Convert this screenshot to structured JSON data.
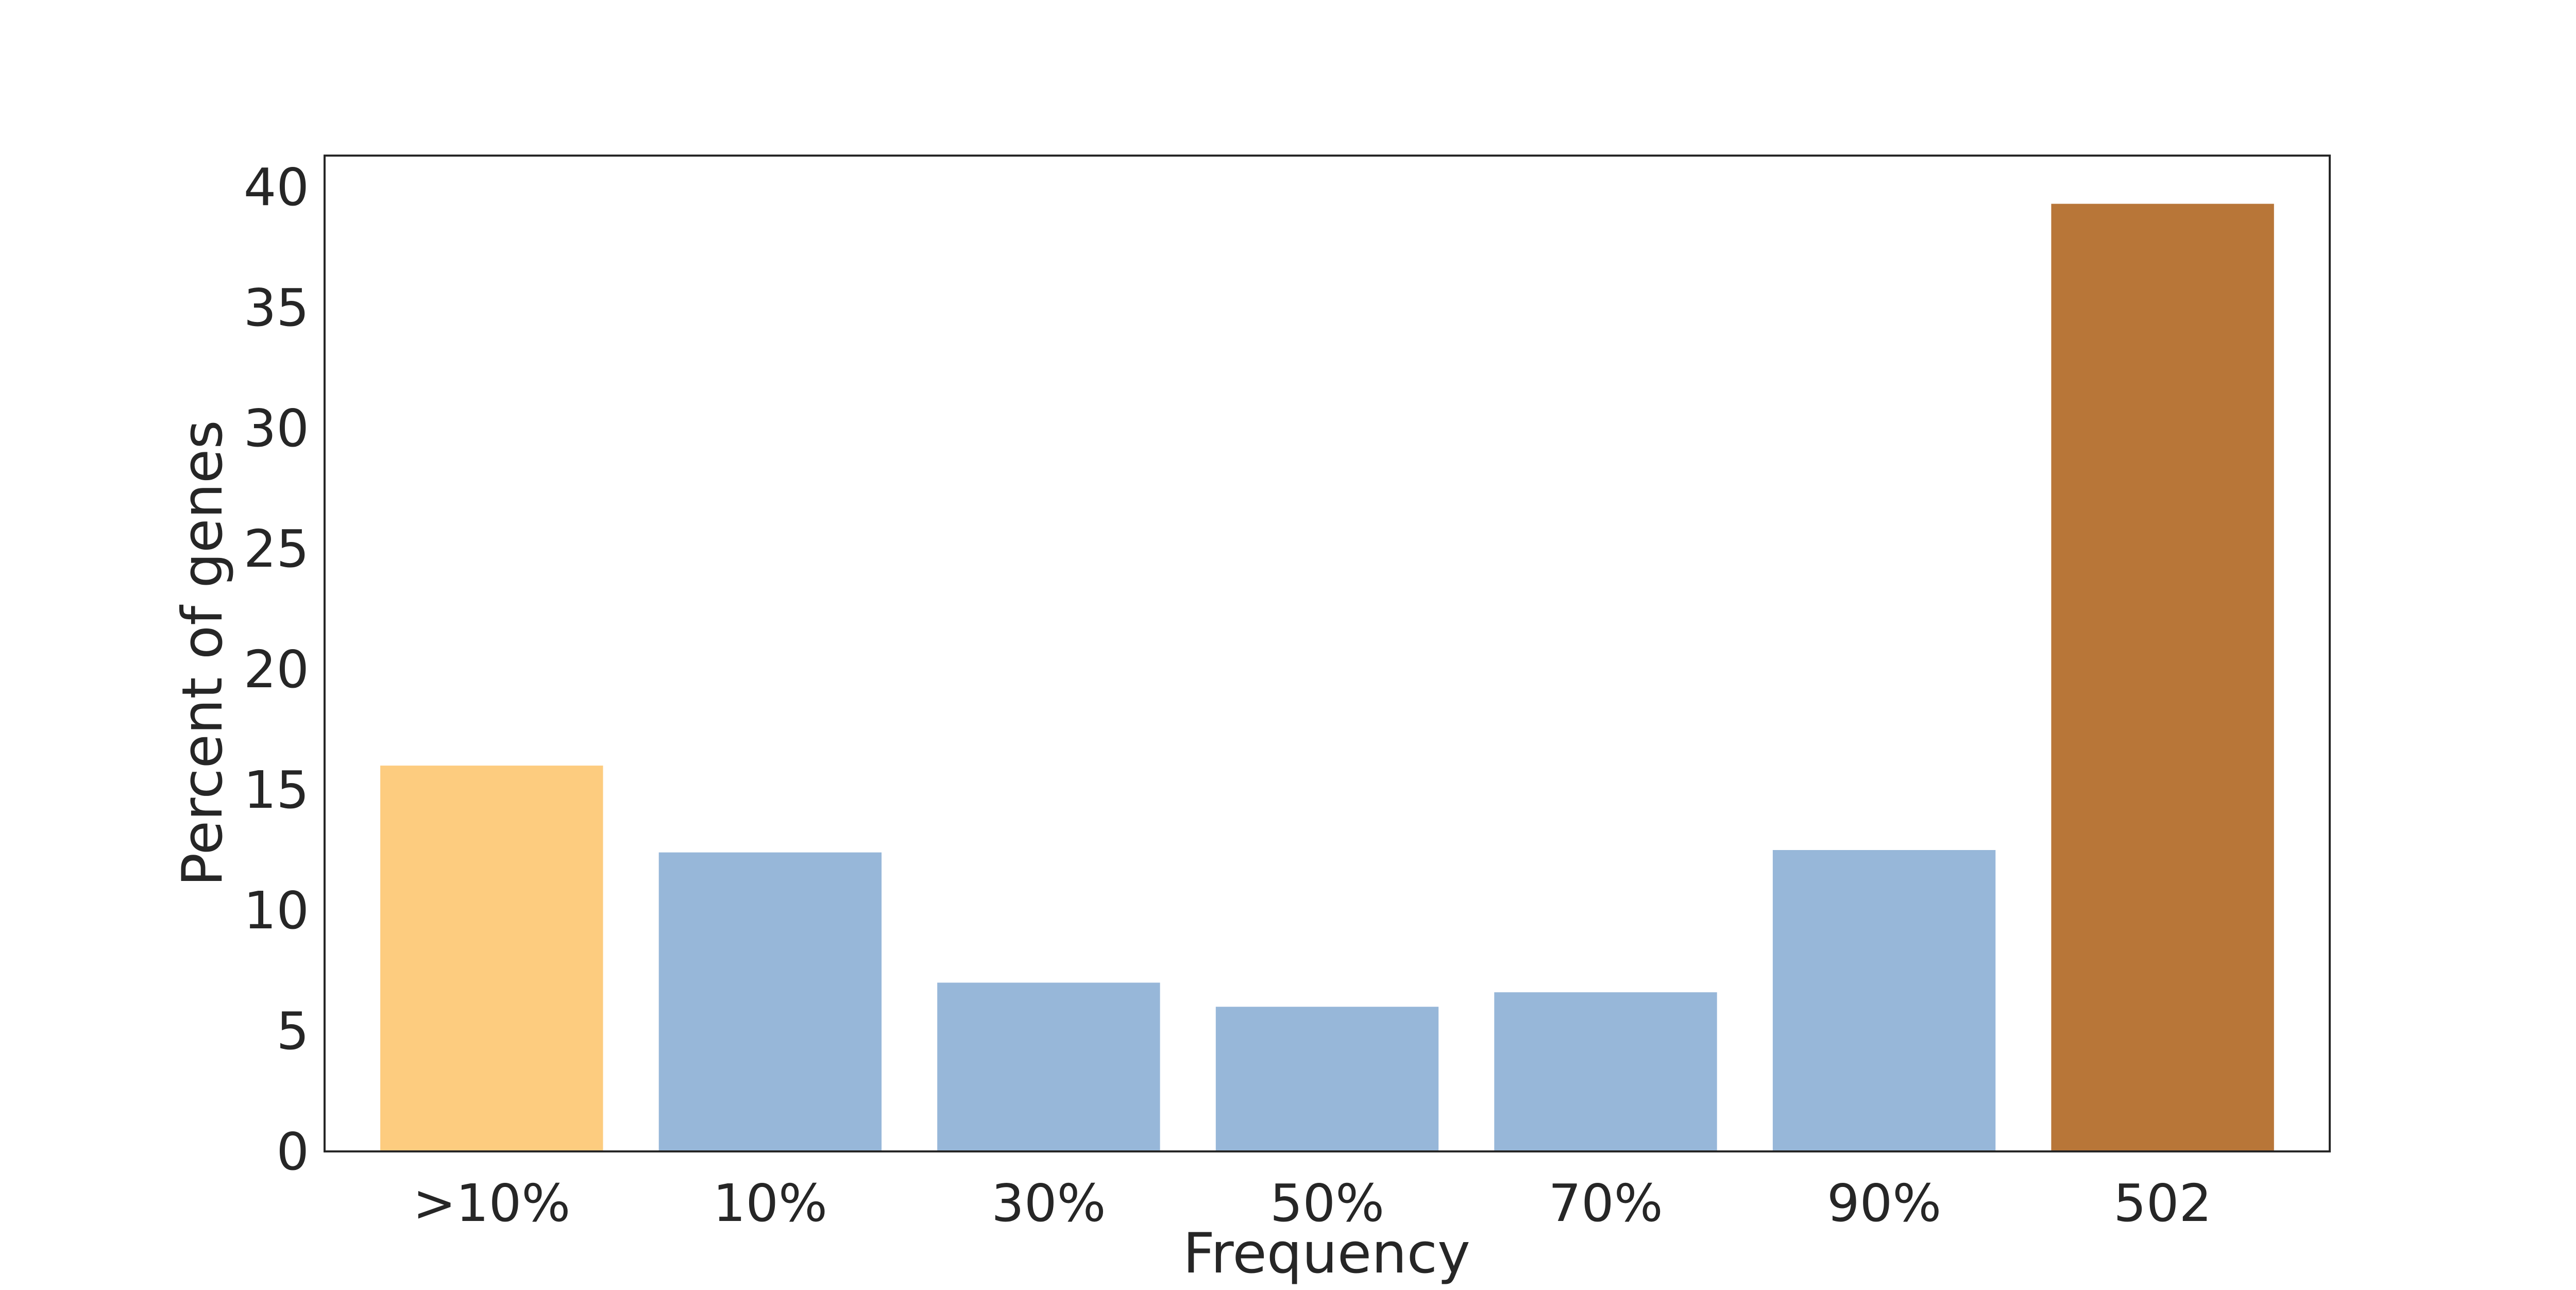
{
  "chart_data": {
    "type": "bar",
    "title": "",
    "xlabel": "Frequency",
    "ylabel": "Percent of genes",
    "categories": [
      ">10%",
      "10%",
      "30%",
      "50%",
      "70%",
      "90%",
      "502"
    ],
    "values": [
      16.0,
      12.4,
      7.0,
      6.0,
      6.6,
      12.5,
      39.3
    ],
    "bar_colors": [
      "#fdcc7f",
      "#97b7d9",
      "#97b7d9",
      "#97b7d9",
      "#97b7d9",
      "#97b7d9",
      "#b87638"
    ],
    "ylim": [
      0,
      41.3
    ],
    "yticks": [
      0,
      5,
      10,
      15,
      20,
      25,
      30,
      35,
      40
    ],
    "grid": false,
    "legend": "none"
  }
}
